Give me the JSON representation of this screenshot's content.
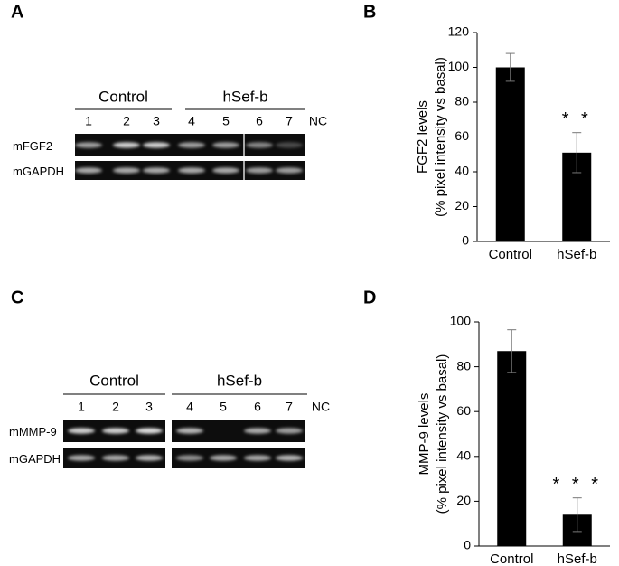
{
  "gels": [
    {
      "panel": "A",
      "groups": [
        "Control",
        "hSef-b"
      ],
      "lanes": [
        "1",
        "2",
        "3",
        "4",
        "5",
        "6",
        "7",
        "NC"
      ],
      "rows": [
        "mFGF2",
        "mGAPDH"
      ]
    },
    {
      "panel": "C",
      "groups": [
        "Control",
        "hSef-b"
      ],
      "lanes": [
        "1",
        "2",
        "3",
        "4",
        "5",
        "6",
        "7",
        "NC"
      ],
      "rows": [
        "mMMP-9",
        "mGAPDH"
      ]
    }
  ],
  "chart_data": [
    {
      "type": "bar",
      "panel": "B",
      "ylabel": [
        "FGF2 levels",
        "(% pixel intensity vs basal)"
      ],
      "categories": [
        "Control",
        "hSef-b"
      ],
      "values": [
        100,
        51
      ],
      "errors": [
        8,
        11.5
      ],
      "color": "#000000",
      "annotations": [
        null,
        "* *"
      ],
      "ylim": [
        0,
        120
      ],
      "yticks": [
        0,
        20,
        40,
        60,
        80,
        100,
        120
      ]
    },
    {
      "type": "bar",
      "panel": "D",
      "ylabel": [
        "MMP-9 levels",
        "(% pixel intensity vs basal)"
      ],
      "categories": [
        "Control",
        "hSef-b"
      ],
      "values": [
        87,
        14
      ],
      "errors": [
        9.5,
        7.5
      ],
      "color": "#000000",
      "annotations": [
        null,
        "* * *"
      ],
      "ylim": [
        0,
        100
      ],
      "yticks": [
        0,
        20,
        40,
        60,
        80,
        100
      ]
    }
  ]
}
